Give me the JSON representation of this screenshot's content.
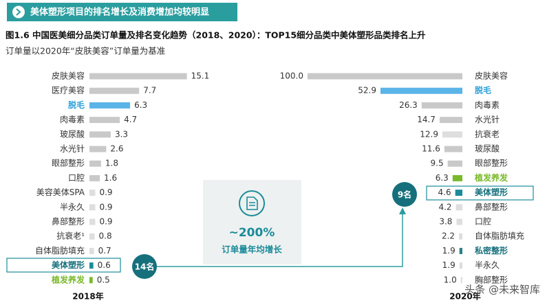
{
  "header": "美体塑形项目的排名增长及消费增加均较明显",
  "figure_title": "图1.6 中国医美细分品类订单量及排名变化趋势（2018、2020）：TOP15细分品类中美体塑形品类排名上升",
  "note": "订单量以2020年“皮肤美容”订单量为基准",
  "callout": {
    "value": "~200%",
    "label": "订单量年均增长"
  },
  "badges": [
    "14名",
    "9名"
  ],
  "watermark": "头条 @未来智库",
  "chart_data": [
    {
      "type": "bar",
      "orientation": "horizontal",
      "title": "2018年",
      "categories": [
        "皮肤美容",
        "医疗美容",
        "脱毛",
        "肉毒素",
        "玻尿酸",
        "水光针",
        "眼部整形",
        "口腔",
        "美容美体SPA",
        "半永久",
        "鼻部整形",
        "抗衰老¹",
        "自体脂肪填充",
        "美体塑形",
        "植发养发"
      ],
      "values": [
        15.1,
        7.7,
        6.3,
        4.7,
        3.3,
        2.6,
        1.8,
        1.6,
        0.9,
        0.9,
        0.9,
        0.8,
        0.7,
        0.6,
        0.5
      ],
      "colors": [
        "#c9c9c9",
        "#c9c9c9",
        "#5ab4e8",
        "#c9c9c9",
        "#c9c9c9",
        "#c9c9c9",
        "#c9c9c9",
        "#c9c9c9",
        "#dedede",
        "#dedede",
        "#dedede",
        "#dedede",
        "#dedede",
        "#1a8b99",
        "#7ab929"
      ],
      "label_colors": [
        "#333333",
        "#333333",
        "#2b9fd9",
        "#333333",
        "#333333",
        "#333333",
        "#333333",
        "#333333",
        "#333333",
        "#333333",
        "#333333",
        "#333333",
        "#333333",
        "#16707c",
        "#7ab929"
      ],
      "xlim": [
        0,
        16
      ],
      "x_reversed": false
    },
    {
      "type": "bar",
      "orientation": "horizontal",
      "title": "2020年",
      "categories": [
        "皮肤美容",
        "脱毛",
        "肉毒素",
        "水光针",
        "抗衰老",
        "玻尿酸",
        "眼部整形",
        "植发养发",
        "美体塑形",
        "鼻部整形",
        "口腔",
        "自体脂肪填充",
        "私密整形",
        "半永久",
        "胸部整形"
      ],
      "values": [
        100.0,
        52.9,
        26.3,
        14.7,
        12.9,
        11.6,
        9.5,
        6.3,
        4.6,
        4.2,
        3.8,
        2.2,
        1.9,
        1.9,
        1.0
      ],
      "value_labels": [
        "100.0",
        "52.9",
        "26.3",
        "14.7",
        "12.9",
        "11.6",
        "9.5",
        "6.3",
        "4.6",
        "4.2",
        "3.8",
        "2.2",
        "1.9",
        "1.9",
        "1.0"
      ],
      "colors": [
        "#c9c9c9",
        "#5ab4e8",
        "#c9c9c9",
        "#c9c9c9",
        "#dedede",
        "#c9c9c9",
        "#c9c9c9",
        "#7ab929",
        "#1a8b99",
        "#dedede",
        "#dedede",
        "#dedede",
        "#2a7f86",
        "#dedede",
        "#dedede"
      ],
      "label_colors": [
        "#333333",
        "#2b9fd9",
        "#333333",
        "#333333",
        "#333333",
        "#333333",
        "#333333",
        "#7ab929",
        "#16707c",
        "#333333",
        "#333333",
        "#333333",
        "#16707c",
        "#333333",
        "#333333"
      ],
      "xlim": [
        0,
        100
      ],
      "x_reversed": true
    }
  ]
}
